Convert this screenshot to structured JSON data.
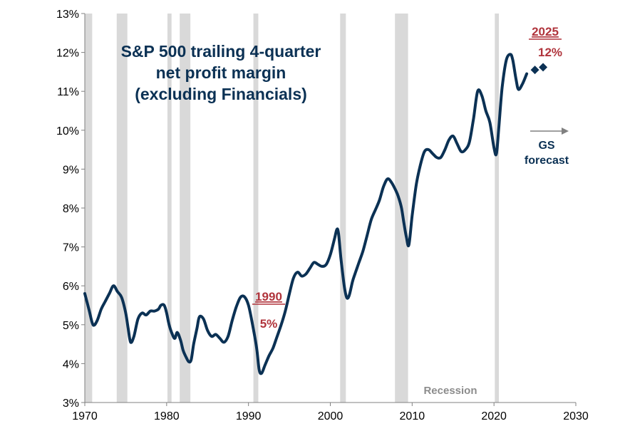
{
  "chart_data": {
    "type": "line",
    "title_lines": [
      "S&P 500 trailing 4-quarter",
      "net profit margin",
      "(excluding Financials)"
    ],
    "xlim": [
      1970,
      2030
    ],
    "ylim": [
      3,
      13
    ],
    "x_ticks": [
      1970,
      1980,
      1990,
      2000,
      2010,
      2020,
      2030
    ],
    "x_tick_labels": [
      "1970",
      "1980",
      "1990",
      "2000",
      "2010",
      "2020",
      "2030"
    ],
    "y_ticks": [
      3,
      4,
      5,
      6,
      7,
      8,
      9,
      10,
      11,
      12,
      13
    ],
    "y_tick_labels": [
      "3%",
      "4%",
      "5%",
      "6%",
      "7%",
      "8%",
      "9%",
      "10%",
      "11%",
      "12%",
      "13%"
    ],
    "recessions": [
      [
        1970.0,
        1970.9
      ],
      [
        1973.9,
        1975.2
      ],
      [
        1980.1,
        1980.6
      ],
      [
        1981.6,
        1982.9
      ],
      [
        1990.6,
        1991.2
      ],
      [
        2001.2,
        2001.9
      ],
      [
        2007.9,
        2009.5
      ],
      [
        2020.1,
        2020.6
      ]
    ],
    "recession_label": "Recession",
    "series": [
      {
        "name": "S&P 500 trailing 4-quarter net profit margin (ex Financials)",
        "color": "#0b3154",
        "x": [
          1970.0,
          1970.5,
          1971.0,
          1971.5,
          1972.0,
          1972.5,
          1973.0,
          1973.5,
          1974.0,
          1974.5,
          1975.0,
          1975.3,
          1975.6,
          1976.0,
          1976.5,
          1977.0,
          1977.5,
          1978.0,
          1978.5,
          1979.0,
          1979.3,
          1979.7,
          1980.0,
          1980.3,
          1980.7,
          1981.0,
          1981.3,
          1981.7,
          1982.0,
          1982.3,
          1982.7,
          1983.0,
          1983.3,
          1983.7,
          1984.0,
          1984.5,
          1985.0,
          1985.5,
          1986.0,
          1986.5,
          1987.0,
          1987.5,
          1988.0,
          1988.5,
          1989.0,
          1989.5,
          1990.0,
          1990.5,
          1991.0,
          1991.3,
          1991.6,
          1992.0,
          1992.5,
          1993.0,
          1993.5,
          1994.0,
          1994.5,
          1995.0,
          1995.5,
          1996.0,
          1996.5,
          1997.0,
          1997.5,
          1998.0,
          1998.5,
          1999.0,
          1999.5,
          2000.0,
          2000.5,
          2000.8,
          2001.0,
          2001.3,
          2001.7,
          2002.0,
          2002.3,
          2002.7,
          2003.0,
          2003.5,
          2004.0,
          2004.5,
          2005.0,
          2005.5,
          2006.0,
          2006.5,
          2007.0,
          2007.5,
          2008.0,
          2008.3,
          2008.7,
          2009.0,
          2009.3,
          2009.6,
          2010.0,
          2010.5,
          2011.0,
          2011.5,
          2012.0,
          2012.5,
          2013.0,
          2013.5,
          2014.0,
          2014.5,
          2015.0,
          2015.5,
          2016.0,
          2016.5,
          2017.0,
          2017.5,
          2018.0,
          2018.5,
          2019.0,
          2019.5,
          2020.0,
          2020.3,
          2020.6,
          2021.0,
          2021.5,
          2022.0,
          2022.3,
          2022.7,
          2023.0,
          2023.5,
          2024.0
        ],
        "values": [
          5.8,
          5.4,
          5.0,
          5.1,
          5.4,
          5.6,
          5.8,
          6.0,
          5.85,
          5.7,
          5.3,
          4.9,
          4.55,
          4.7,
          5.15,
          5.3,
          5.25,
          5.35,
          5.35,
          5.4,
          5.5,
          5.5,
          5.3,
          5.0,
          4.75,
          4.65,
          4.8,
          4.6,
          4.35,
          4.2,
          4.05,
          4.1,
          4.5,
          4.9,
          5.2,
          5.15,
          4.85,
          4.7,
          4.75,
          4.65,
          4.55,
          4.7,
          5.1,
          5.45,
          5.7,
          5.72,
          5.5,
          5.0,
          4.4,
          3.85,
          3.75,
          3.95,
          4.2,
          4.4,
          4.7,
          5.0,
          5.35,
          5.8,
          6.2,
          6.35,
          6.25,
          6.3,
          6.45,
          6.6,
          6.55,
          6.5,
          6.55,
          6.8,
          7.2,
          7.45,
          7.35,
          6.7,
          6.0,
          5.7,
          5.75,
          6.1,
          6.3,
          6.6,
          6.9,
          7.3,
          7.7,
          7.95,
          8.2,
          8.55,
          8.75,
          8.65,
          8.45,
          8.3,
          8.0,
          7.6,
          7.25,
          7.05,
          7.8,
          8.6,
          9.1,
          9.45,
          9.5,
          9.4,
          9.3,
          9.3,
          9.5,
          9.75,
          9.85,
          9.65,
          9.45,
          9.5,
          9.7,
          10.3,
          11.0,
          10.9,
          10.5,
          10.2,
          9.55,
          9.4,
          10.1,
          11.1,
          11.8,
          11.95,
          11.8,
          11.3,
          11.05,
          11.2,
          11.45
        ]
      },
      {
        "name": "GS forecast",
        "color": "#0b3154",
        "marker": "diamond",
        "x": [
          2025.0,
          2026.0
        ],
        "values": [
          11.55,
          11.62
        ]
      }
    ],
    "annotations": [
      {
        "year": "1990",
        "value": "5%"
      },
      {
        "year": "2025",
        "value": "12%"
      }
    ],
    "forecast_label_lines": [
      "GS",
      "forecast"
    ]
  }
}
